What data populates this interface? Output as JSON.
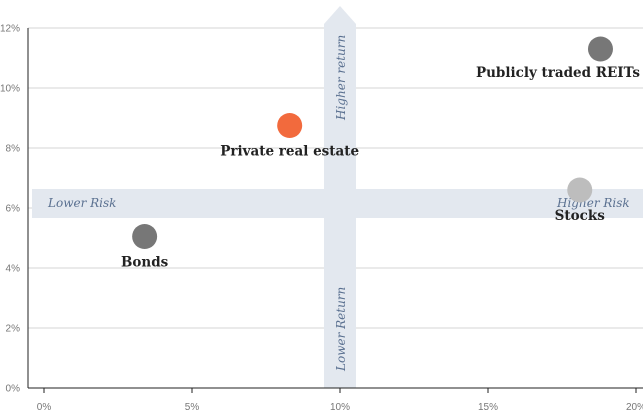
{
  "chart_data": {
    "type": "scatter",
    "title": "",
    "xlabel": "",
    "ylabel": "",
    "xlim": [
      0,
      20
    ],
    "ylim": [
      0,
      12
    ],
    "x_ticks": [
      "0%",
      "5%",
      "10%",
      "15%",
      "20%"
    ],
    "y_ticks": [
      "0%",
      "2%",
      "4%",
      "6%",
      "8%",
      "10%",
      "12%"
    ],
    "grid": "horizontal",
    "points": [
      {
        "label": "Bonds",
        "x": 3.4,
        "y": 5.05,
        "color": "#777777"
      },
      {
        "label": "Private real estate",
        "x": 8.3,
        "y": 8.75,
        "color": "#f26a3d"
      },
      {
        "label": "Stocks",
        "x": 18.1,
        "y": 6.6,
        "color": "#bdbdbd"
      },
      {
        "label": "Publicly traded REITs",
        "x": 18.8,
        "y": 11.3,
        "color": "#777777"
      }
    ],
    "annotations": {
      "lower_risk": "Lower Risk",
      "higher_risk": "Higher Risk",
      "higher_return": "Higher return",
      "lower_return": "Lower Return"
    }
  }
}
